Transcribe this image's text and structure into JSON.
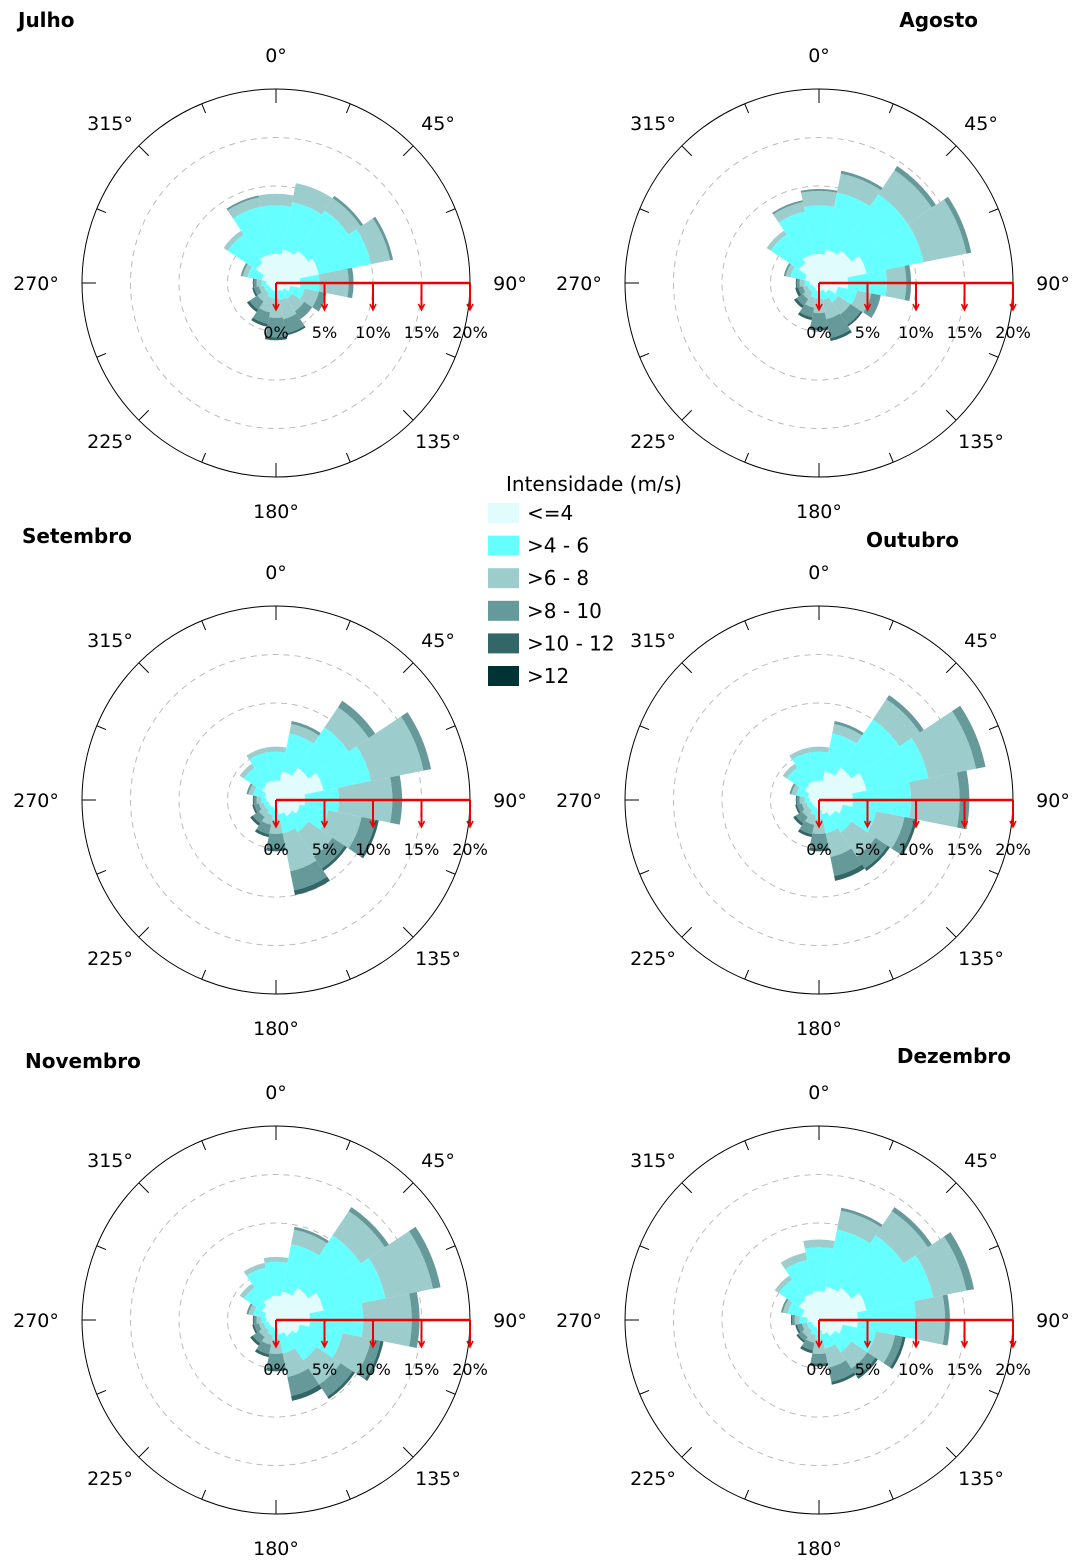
{
  "legend": {
    "title": "Intensidade (m/s)",
    "bins": [
      {
        "label": "<=4",
        "color": "#e0fcfc"
      },
      {
        "label": ">4 - 6",
        "color": "#66ffff"
      },
      {
        "label": ">6 - 8",
        "color": "#9ccccc"
      },
      {
        "label": ">8 - 10",
        "color": "#669999"
      },
      {
        "label": ">10 - 12",
        "color": "#336666"
      },
      {
        "label": ">12",
        "color": "#003333"
      }
    ]
  },
  "angle_labels": [
    "0°",
    "45°",
    "90°",
    "135°",
    "180°",
    "225°",
    "270°",
    "315°"
  ],
  "pct_labels": [
    "0%",
    "5%",
    "10%",
    "15%",
    "20%"
  ],
  "scale_color": "#ee0000",
  "chart_data": [
    {
      "type": "polar-bar",
      "title": "Julho",
      "rmax": 20,
      "directions_deg": [
        0,
        22.5,
        45,
        67.5,
        90,
        112.5,
        135,
        157.5,
        180,
        202.5,
        225,
        247.5,
        270,
        292.5,
        315,
        337.5
      ],
      "stacks": [
        [
          3.0,
          5.0,
          1.2,
          0,
          0,
          0
        ],
        [
          3.5,
          5.0,
          2.0,
          0,
          0,
          0
        ],
        [
          4.0,
          5.0,
          1.5,
          0.3,
          0,
          0
        ],
        [
          4.5,
          5.5,
          2.0,
          0.3,
          0,
          0
        ],
        [
          2.5,
          2.0,
          3.0,
          0.5,
          0,
          0
        ],
        [
          1.5,
          1.5,
          1.5,
          0.8,
          0,
          0
        ],
        [
          1.0,
          1.0,
          1.5,
          1.0,
          0,
          0
        ],
        [
          0.8,
          1.0,
          2.0,
          1.5,
          0.2,
          0
        ],
        [
          0.8,
          0.8,
          2.0,
          2.0,
          0.3,
          0
        ],
        [
          0.8,
          0.8,
          1.5,
          1.2,
          0.3,
          0
        ],
        [
          0.8,
          0.5,
          1.0,
          1.0,
          0.3,
          0
        ],
        [
          0.8,
          0.5,
          0.5,
          0.5,
          0.2,
          0
        ],
        [
          1.0,
          0.5,
          0.5,
          0.3,
          0.1,
          0
        ],
        [
          1.5,
          1.5,
          0.5,
          0.2,
          0,
          0
        ],
        [
          2.5,
          3.5,
          0.5,
          0,
          0,
          0
        ],
        [
          3.0,
          5.0,
          1.0,
          0.2,
          0,
          0
        ]
      ]
    },
    {
      "type": "polar-bar",
      "title": "Agosto",
      "rmax": 20,
      "directions_deg": [
        0,
        22.5,
        45,
        67.5,
        90,
        112.5,
        135,
        157.5,
        180,
        202.5,
        225,
        247.5,
        270,
        292.5,
        315,
        337.5
      ],
      "stacks": [
        [
          3.0,
          5.0,
          1.5,
          0.2,
          0,
          0
        ],
        [
          3.5,
          6.0,
          2.0,
          0.3,
          0,
          0
        ],
        [
          4.0,
          7.0,
          3.0,
          0.5,
          0,
          0
        ],
        [
          5.0,
          6.0,
          4.5,
          0.5,
          0,
          0
        ],
        [
          3.0,
          4.0,
          2.0,
          0.5,
          0,
          0
        ],
        [
          2.0,
          2.0,
          1.5,
          1.0,
          0,
          0
        ],
        [
          1.2,
          1.2,
          1.5,
          1.3,
          0.2,
          0
        ],
        [
          0.8,
          1.0,
          2.0,
          2.0,
          0.3,
          0
        ],
        [
          0.8,
          0.8,
          1.5,
          1.5,
          0.3,
          0
        ],
        [
          0.8,
          0.8,
          1.0,
          1.0,
          0.3,
          0
        ],
        [
          0.7,
          0.5,
          0.8,
          0.8,
          0.3,
          0
        ],
        [
          0.7,
          0.5,
          0.5,
          0.5,
          0.3,
          0
        ],
        [
          1.0,
          0.5,
          0.5,
          0.3,
          0.1,
          0
        ],
        [
          1.5,
          1.5,
          0.5,
          0.2,
          0,
          0
        ],
        [
          2.5,
          3.5,
          0.5,
          0,
          0,
          0
        ],
        [
          3.0,
          4.5,
          1.0,
          0.2,
          0,
          0
        ]
      ]
    },
    {
      "type": "polar-bar",
      "title": "Setembro",
      "rmax": 20,
      "directions_deg": [
        0,
        22.5,
        45,
        67.5,
        90,
        112.5,
        135,
        157.5,
        180,
        202.5,
        225,
        247.5,
        270,
        292.5,
        315,
        337.5
      ],
      "stacks": [
        [
          2.0,
          3.0,
          0.5,
          0,
          0,
          0
        ],
        [
          3.0,
          4.0,
          1.0,
          0.3,
          0,
          0
        ],
        [
          4.0,
          5.0,
          2.5,
          0.8,
          0,
          0
        ],
        [
          5.0,
          5.0,
          5.5,
          0.8,
          0,
          0
        ],
        [
          3.0,
          3.5,
          5.5,
          1.0,
          0,
          0
        ],
        [
          2.5,
          3.0,
          3.5,
          1.5,
          0.3,
          0
        ],
        [
          2.0,
          2.0,
          3.0,
          1.5,
          0.3,
          0
        ],
        [
          1.5,
          2.0,
          4.0,
          2.0,
          0.5,
          0
        ],
        [
          1.0,
          1.0,
          1.5,
          1.5,
          0.3,
          0
        ],
        [
          0.8,
          0.8,
          1.0,
          1.0,
          0.3,
          0
        ],
        [
          0.8,
          0.5,
          0.8,
          0.8,
          0.3,
          0
        ],
        [
          0.8,
          0.5,
          0.5,
          0.5,
          0.2,
          0
        ],
        [
          1.0,
          0.5,
          0.5,
          0.3,
          0.1,
          0
        ],
        [
          1.2,
          1.2,
          0.5,
          0.2,
          0,
          0
        ],
        [
          1.8,
          2.2,
          0.5,
          0,
          0,
          0
        ],
        [
          2.0,
          3.0,
          0.5,
          0,
          0,
          0
        ]
      ]
    },
    {
      "type": "polar-bar",
      "title": "Outubro",
      "rmax": 20,
      "directions_deg": [
        0,
        22.5,
        45,
        67.5,
        90,
        112.5,
        135,
        157.5,
        180,
        202.5,
        225,
        247.5,
        270,
        292.5,
        315,
        337.5
      ],
      "stacks": [
        [
          2.0,
          3.0,
          0.5,
          0,
          0,
          0
        ],
        [
          3.0,
          4.0,
          1.0,
          0.3,
          0,
          0
        ],
        [
          4.0,
          6.0,
          2.5,
          0.5,
          0,
          0
        ],
        [
          5.0,
          6.5,
          5.0,
          1.0,
          0,
          0
        ],
        [
          3.5,
          6.0,
          5.0,
          1.0,
          0,
          0
        ],
        [
          2.5,
          3.5,
          3.0,
          1.0,
          0.3,
          0
        ],
        [
          2.0,
          2.0,
          3.0,
          1.5,
          0.3,
          0
        ],
        [
          1.5,
          2.0,
          2.5,
          2.0,
          0.5,
          0
        ],
        [
          1.0,
          1.0,
          1.5,
          1.5,
          0.3,
          0
        ],
        [
          0.8,
          0.8,
          1.0,
          1.0,
          0.3,
          0
        ],
        [
          0.8,
          0.5,
          0.8,
          0.8,
          0.3,
          0
        ],
        [
          0.8,
          0.5,
          0.5,
          0.5,
          0.2,
          0
        ],
        [
          1.0,
          0.5,
          0.5,
          0.3,
          0.1,
          0
        ],
        [
          1.2,
          1.2,
          0.5,
          0.2,
          0,
          0
        ],
        [
          1.8,
          2.2,
          0.5,
          0,
          0,
          0
        ],
        [
          2.0,
          3.0,
          0.5,
          0,
          0,
          0
        ]
      ]
    },
    {
      "type": "polar-bar",
      "title": "Novembro",
      "rmax": 20,
      "directions_deg": [
        0,
        22.5,
        45,
        67.5,
        90,
        112.5,
        135,
        157.5,
        180,
        202.5,
        225,
        247.5,
        270,
        292.5,
        315,
        337.5
      ],
      "stacks": [
        [
          2.5,
          3.5,
          0.5,
          0,
          0,
          0
        ],
        [
          3.0,
          5.0,
          1.5,
          0.3,
          0,
          0
        ],
        [
          4.0,
          6.5,
          3.0,
          0.5,
          0,
          0
        ],
        [
          5.0,
          6.5,
          5.0,
          0.8,
          0,
          0
        ],
        [
          3.5,
          5.5,
          5.0,
          0.8,
          0,
          0
        ],
        [
          2.5,
          4.5,
          3.0,
          1.0,
          0.3,
          0
        ],
        [
          2.0,
          3.0,
          3.0,
          1.5,
          0.3,
          0
        ],
        [
          1.5,
          2.0,
          2.5,
          2.0,
          0.5,
          0
        ],
        [
          1.0,
          1.0,
          1.5,
          1.5,
          0.3,
          0
        ],
        [
          0.8,
          0.8,
          1.0,
          1.0,
          0.3,
          0
        ],
        [
          0.8,
          0.5,
          0.8,
          0.8,
          0.3,
          0
        ],
        [
          0.8,
          0.5,
          0.5,
          0.5,
          0.2,
          0
        ],
        [
          1.0,
          0.5,
          0.5,
          0.3,
          0.1,
          0
        ],
        [
          1.2,
          1.2,
          0.5,
          0.2,
          0,
          0
        ],
        [
          1.8,
          2.2,
          0.5,
          0,
          0,
          0
        ],
        [
          2.3,
          3.2,
          0.5,
          0,
          0,
          0
        ]
      ]
    },
    {
      "type": "polar-bar",
      "title": "Dezembro",
      "rmax": 20,
      "directions_deg": [
        0,
        22.5,
        45,
        67.5,
        90,
        112.5,
        135,
        157.5,
        180,
        202.5,
        225,
        247.5,
        270,
        292.5,
        315,
        337.5
      ],
      "stacks": [
        [
          3.0,
          4.5,
          0.8,
          0,
          0,
          0
        ],
        [
          3.5,
          6.0,
          2.0,
          0.3,
          0,
          0
        ],
        [
          4.0,
          6.5,
          3.0,
          0.5,
          0,
          0
        ],
        [
          5.0,
          7.0,
          3.5,
          0.8,
          0,
          0
        ],
        [
          4.0,
          6.0,
          3.0,
          0.5,
          0,
          0
        ],
        [
          2.5,
          3.5,
          2.0,
          0.8,
          0.3,
          0
        ],
        [
          2.0,
          2.0,
          2.0,
          1.0,
          0.3,
          0
        ],
        [
          1.5,
          1.5,
          2.0,
          1.5,
          0.3,
          0
        ],
        [
          1.0,
          1.0,
          1.5,
          1.0,
          0.3,
          0
        ],
        [
          0.8,
          0.8,
          0.8,
          0.8,
          0.3,
          0
        ],
        [
          0.8,
          0.5,
          0.8,
          0.5,
          0.2,
          0
        ],
        [
          0.8,
          0.5,
          0.5,
          0.5,
          0.2,
          0
        ],
        [
          1.2,
          0.8,
          0.5,
          0.3,
          0.1,
          0
        ],
        [
          1.8,
          1.5,
          0.5,
          0.2,
          0,
          0
        ],
        [
          2.5,
          2.5,
          0.5,
          0,
          0,
          0
        ],
        [
          2.8,
          3.5,
          0.8,
          0,
          0,
          0
        ]
      ]
    }
  ]
}
